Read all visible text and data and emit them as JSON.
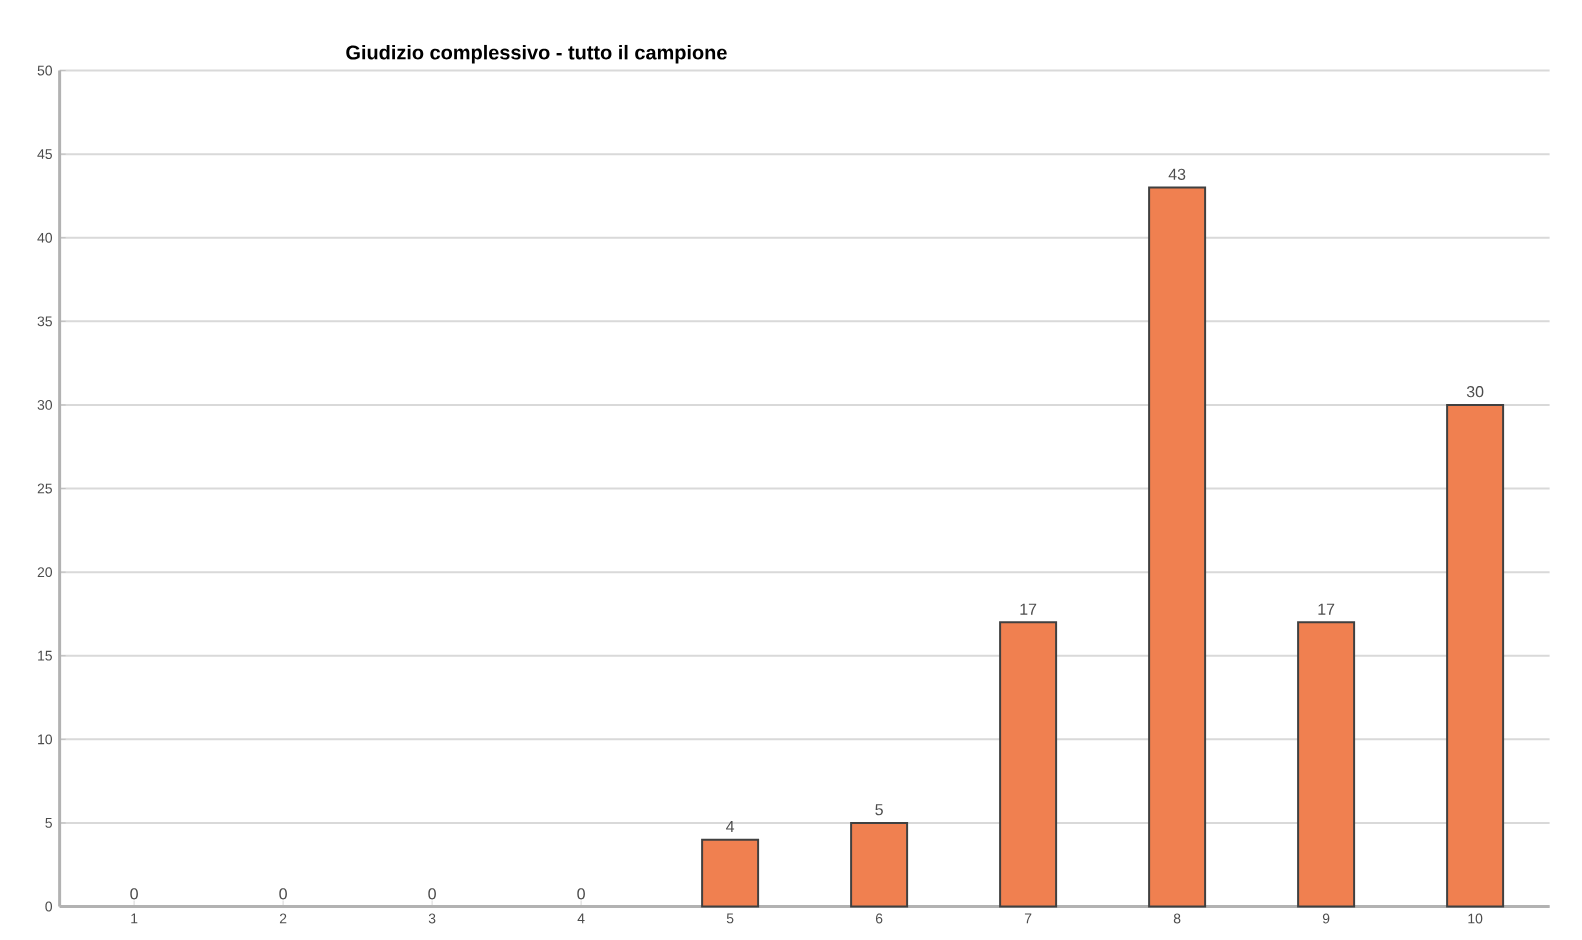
{
  "chart_data": {
    "type": "bar",
    "title": "Giudizio complessivo - tutto il campione",
    "categories": [
      "1",
      "2",
      "3",
      "4",
      "5",
      "6",
      "7",
      "8",
      "9",
      "10"
    ],
    "values": [
      0,
      0,
      0,
      0,
      4,
      5,
      17,
      43,
      17,
      30
    ],
    "color": "#f08050",
    "ylim": [
      0,
      50
    ],
    "yticks": [
      0,
      5,
      10,
      15,
      20,
      25,
      30,
      35,
      40,
      45,
      50
    ],
    "grid": "y",
    "data_labels": true
  }
}
